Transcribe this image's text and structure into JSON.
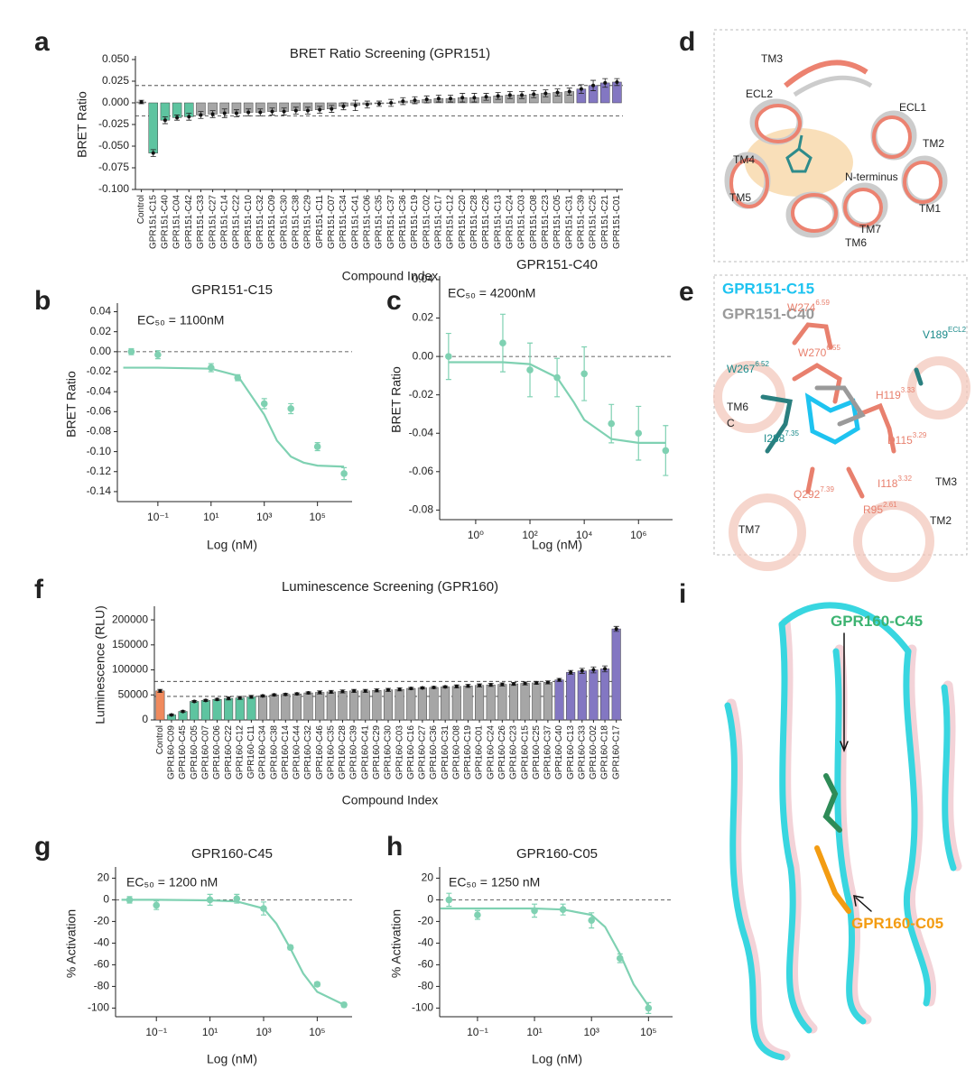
{
  "chart_data": [
    {
      "type": "bar",
      "panel": "a",
      "title": "BRET Ratio Screening (GPR151)",
      "xlabel": "Compound Index",
      "ylabel": "BRET Ratio",
      "categories": [
        "Control",
        "GPR151-C15",
        "GPR151-C40",
        "GPR151-C04",
        "GPR151-C42",
        "GPR151-C33",
        "GPR151-C27",
        "GPR151-C14",
        "GPR151-C22",
        "GPR151-C10",
        "GPR151-C32",
        "GPR151-C09",
        "GPR151-C30",
        "GPR151-C38",
        "GPR151-C29",
        "GPR151-C11",
        "GPR151-C07",
        "GPR151-C34",
        "GPR151-C41",
        "GPR151-C06",
        "GPR151-C35",
        "GPR151-C37",
        "GPR151-C36",
        "GPR151-C19",
        "GPR151-C02",
        "GPR151-C17",
        "GPR151-C12",
        "GPR151-C20",
        "GPR151-C28",
        "GPR151-C26",
        "GPR151-C13",
        "GPR151-C24",
        "GPR151-C03",
        "GPR151-C08",
        "GPR151-C23",
        "GPR151-C05",
        "GPR151-C31",
        "GPR151-C39",
        "GPR151-C25",
        "GPR151-C21",
        "GPR151-C01"
      ],
      "values": [
        0.001,
        -0.058,
        -0.02,
        -0.017,
        -0.016,
        -0.014,
        -0.013,
        -0.012,
        -0.012,
        -0.011,
        -0.011,
        -0.01,
        -0.01,
        -0.009,
        -0.009,
        -0.008,
        -0.007,
        -0.004,
        -0.003,
        -0.002,
        -0.001,
        0,
        0.002,
        0.003,
        0.004,
        0.005,
        0.005,
        0.006,
        0.006,
        0.007,
        0.008,
        0.009,
        0.009,
        0.01,
        0.011,
        0.012,
        0.013,
        0.016,
        0.02,
        0.023,
        0.024
      ],
      "errors": [
        0.002,
        0.004,
        0.004,
        0.003,
        0.004,
        0.004,
        0.004,
        0.005,
        0.004,
        0.004,
        0.004,
        0.004,
        0.004,
        0.004,
        0.004,
        0.004,
        0.004,
        0.004,
        0.006,
        0.004,
        0.003,
        0.004,
        0.004,
        0.004,
        0.004,
        0.004,
        0.004,
        0.005,
        0.005,
        0.004,
        0.004,
        0.004,
        0.004,
        0.004,
        0.004,
        0.004,
        0.004,
        0.005,
        0.006,
        0.005,
        0.004
      ],
      "colors": [
        "#d0d0d0",
        "#5ec4a0",
        "#5ec4a0",
        "#5ec4a0",
        "#5ec4a0",
        "#a6a6a6",
        "#a6a6a6",
        "#a6a6a6",
        "#a6a6a6",
        "#a6a6a6",
        "#a6a6a6",
        "#a6a6a6",
        "#a6a6a6",
        "#a6a6a6",
        "#a6a6a6",
        "#a6a6a6",
        "#a6a6a6",
        "#a6a6a6",
        "#a6a6a6",
        "#a6a6a6",
        "#a6a6a6",
        "#a6a6a6",
        "#a6a6a6",
        "#a6a6a6",
        "#a6a6a6",
        "#a6a6a6",
        "#a6a6a6",
        "#a6a6a6",
        "#a6a6a6",
        "#a6a6a6",
        "#a6a6a6",
        "#a6a6a6",
        "#a6a6a6",
        "#a6a6a6",
        "#a6a6a6",
        "#a6a6a6",
        "#a6a6a6",
        "#8377c2",
        "#8377c2",
        "#8377c2",
        "#8377c2"
      ],
      "ylim": [
        -0.1,
        0.05
      ],
      "yticks": [
        {
          "value": 0.05,
          "label": "0.050"
        },
        0.025,
        {
          "value": 0,
          "label": "0.000"
        },
        -0.025,
        {
          "value": -0.05,
          "label": "-0.050"
        },
        -0.075,
        {
          "value": -0.1,
          "label": "-0.100"
        }
      ],
      "reference_lines": [
        0.02,
        -0.015
      ]
    },
    {
      "type": "scatter",
      "panel": "b",
      "title": "GPR151-C15",
      "xlabel": "Log (nM)",
      "ylabel": "BRET Ratio",
      "annotation": "EC₅₀ = 1100nM",
      "xscale": "log",
      "color": "#7fd1b2",
      "x": [
        0.01,
        0.1,
        10,
        100,
        1000,
        10000,
        100000,
        1000000
      ],
      "values": [
        0,
        -0.003,
        -0.016,
        -0.026,
        -0.052,
        -0.057,
        -0.095,
        -0.122
      ],
      "errors": [
        0.003,
        0.004,
        0.004,
        0.003,
        0.005,
        0.005,
        0.004,
        0.006
      ],
      "fit": {
        "x": [
          0.005,
          0.1,
          10,
          100,
          1000,
          3000,
          10000,
          30000,
          100000,
          1000000
        ],
        "y": [
          -0.016,
          -0.016,
          -0.017,
          -0.024,
          -0.063,
          -0.089,
          -0.105,
          -0.111,
          -0.114,
          -0.115
        ]
      },
      "xlim": [
        0.003,
        2000000
      ],
      "xticks": [
        {
          "value": 0.1,
          "label": "10⁻¹"
        },
        {
          "value": 10,
          "label": "10¹"
        },
        {
          "value": 1000,
          "label": "10³"
        },
        {
          "value": 100000,
          "label": "10⁵"
        }
      ],
      "ylim": [
        -0.15,
        0.045
      ],
      "yticks": [
        0.04,
        0.02,
        {
          "value": 0,
          "label": "0.00"
        },
        -0.02,
        -0.04,
        -0.06,
        -0.08,
        {
          "value": -0.1,
          "label": "-0.10"
        },
        -0.12,
        -0.14
      ],
      "reference_lines": [
        0
      ]
    },
    {
      "type": "scatter",
      "panel": "c",
      "title": "GPR151-C40",
      "xlabel": "Log (nM)",
      "ylabel": "BRET Ratio",
      "annotation": "EC₅₀ = 4200nM",
      "xscale": "log",
      "color": "#7fd1b2",
      "x": [
        0.1,
        10,
        100,
        1000,
        10000,
        100000,
        1000000,
        10000000
      ],
      "values": [
        0,
        0.007,
        -0.007,
        -0.011,
        -0.009,
        -0.035,
        -0.04,
        -0.049
      ],
      "errors": [
        0.012,
        0.015,
        0.014,
        0.01,
        0.014,
        0.01,
        0.014,
        0.013
      ],
      "fit": {
        "x": [
          0.1,
          10,
          100,
          1000,
          4200,
          10000,
          100000,
          1000000,
          10000000
        ],
        "y": [
          -0.003,
          -0.003,
          -0.004,
          -0.011,
          -0.024,
          -0.033,
          -0.043,
          -0.045,
          -0.045
        ]
      },
      "xlim": [
        0.047,
        18000000
      ],
      "xticks": [
        {
          "value": 1,
          "label": "10⁰"
        },
        {
          "value": 100,
          "label": "10²"
        },
        {
          "value": 10000,
          "label": "10⁴"
        },
        {
          "value": 1000000,
          "label": "10⁶"
        }
      ],
      "ylim": [
        -0.085,
        0.04
      ],
      "yticks": [
        0.04,
        0.02,
        {
          "value": 0,
          "label": "0.00"
        },
        -0.02,
        -0.04,
        -0.06,
        -0.08
      ],
      "reference_lines": [
        0
      ]
    },
    {
      "type": "bar",
      "panel": "f",
      "title": "Luminescence Screening (GPR160)",
      "xlabel": "Compound Index",
      "ylabel": "Luminescence (RLU)",
      "categories": [
        "Control",
        "GPR160-C09",
        "GPR160-C45",
        "GPR160-C05",
        "GPR160-C07",
        "GPR160-C06",
        "GPR160-C22",
        "GPR160-C12",
        "GPR160-C11",
        "GPR160-C34",
        "GPR160-C38",
        "GPR160-C14",
        "GPR160-C44",
        "GPR160-C32",
        "GPR160-C46",
        "GPR160-C35",
        "GPR160-C28",
        "GPR160-C39",
        "GPR160-C41",
        "GPR160-C29",
        "GPR160-C30",
        "GPR160-C03",
        "GPR160-C16",
        "GPR160-C27",
        "GPR160-C36",
        "GPR160-C31",
        "GPR160-C08",
        "GPR160-C19",
        "GPR160-C01",
        "GPR160-C24",
        "GPR160-C26",
        "GPR160-C23",
        "GPR160-C15",
        "GPR160-C25",
        "GPR160-C37",
        "GPR160-C40",
        "GPR160-C13",
        "GPR160-C33",
        "GPR160-C02",
        "GPR160-C18",
        "GPR160-C17"
      ],
      "values": [
        58000,
        10000,
        17000,
        37000,
        39000,
        41000,
        43000,
        44000,
        46000,
        48000,
        50000,
        51000,
        52000,
        54000,
        55000,
        56000,
        57000,
        58000,
        58000,
        59000,
        60000,
        61000,
        63000,
        64000,
        65000,
        66000,
        67000,
        68000,
        69000,
        70000,
        71000,
        72000,
        73000,
        74000,
        75000,
        80000,
        95000,
        98000,
        100000,
        102000,
        182000
      ],
      "errors": [
        3000,
        1500,
        1500,
        2000,
        2000,
        2000,
        3000,
        3000,
        3000,
        2000,
        2000,
        2000,
        2000,
        2000,
        3000,
        3000,
        3000,
        3000,
        3000,
        3000,
        3000,
        3000,
        2000,
        2000,
        2000,
        2000,
        3000,
        3000,
        3000,
        3000,
        3000,
        3000,
        3000,
        3000,
        3000,
        3000,
        4000,
        5000,
        6000,
        6000,
        5000
      ],
      "colors": [
        "#f08a5d",
        "#5ec4a0",
        "#5ec4a0",
        "#5ec4a0",
        "#5ec4a0",
        "#5ec4a0",
        "#5ec4a0",
        "#5ec4a0",
        "#5ec4a0",
        "#a6a6a6",
        "#a6a6a6",
        "#a6a6a6",
        "#a6a6a6",
        "#a6a6a6",
        "#a6a6a6",
        "#a6a6a6",
        "#a6a6a6",
        "#a6a6a6",
        "#a6a6a6",
        "#a6a6a6",
        "#a6a6a6",
        "#a6a6a6",
        "#a6a6a6",
        "#a6a6a6",
        "#a6a6a6",
        "#a6a6a6",
        "#a6a6a6",
        "#a6a6a6",
        "#a6a6a6",
        "#a6a6a6",
        "#a6a6a6",
        "#a6a6a6",
        "#a6a6a6",
        "#a6a6a6",
        "#a6a6a6",
        "#8377c2",
        "#8377c2",
        "#8377c2",
        "#8377c2",
        "#8377c2",
        "#8377c2"
      ],
      "ylim": [
        0,
        220000
      ],
      "yticks": [
        0,
        50000,
        100000,
        150000,
        200000
      ],
      "reference_lines": [
        77000,
        47000
      ]
    },
    {
      "type": "scatter",
      "panel": "g",
      "title": "GPR160-C45",
      "xlabel": "Log (nM)",
      "ylabel": "% Activation",
      "annotation": "EC₅₀ = 1200 nM",
      "xscale": "log",
      "color": "#7fd1b2",
      "x": [
        0.01,
        0.1,
        10,
        100,
        1000,
        10000,
        100000,
        1000000
      ],
      "values": [
        0,
        -5,
        0,
        1,
        -8,
        -44,
        -78,
        -97
      ],
      "errors": [
        3,
        4,
        5,
        4,
        6,
        2,
        2,
        2
      ],
      "fit": {
        "x": [
          0.005,
          0.1,
          10,
          100,
          1000,
          3000,
          10000,
          30000,
          100000,
          1000000
        ],
        "y": [
          0,
          0,
          -0.5,
          -1.5,
          -8,
          -22,
          -45,
          -68,
          -85,
          -97
        ]
      },
      "xlim": [
        0.003,
        2000000
      ],
      "xticks": [
        {
          "value": 0.1,
          "label": "10⁻¹"
        },
        {
          "value": 10,
          "label": "10¹"
        },
        {
          "value": 1000,
          "label": "10³"
        },
        {
          "value": 100000,
          "label": "10⁵"
        }
      ],
      "ylim": [
        -108,
        27
      ],
      "yticks": [
        20,
        0,
        -20,
        -40,
        -60,
        -80,
        -100
      ],
      "reference_lines": [
        0
      ]
    },
    {
      "type": "scatter",
      "panel": "h",
      "title": "GPR160-C05",
      "xlabel": "Log (nM)",
      "ylabel": "% Activation",
      "annotation": "EC₅₀ = 1250 nM",
      "xscale": "log",
      "color": "#7fd1b2",
      "x": [
        0.01,
        0.1,
        10,
        100,
        1000,
        10000,
        100000
      ],
      "values": [
        0,
        -14,
        -10,
        -9,
        -19,
        -54,
        -100
      ],
      "errors": [
        6,
        4,
        6,
        5,
        7,
        4,
        5
      ],
      "fit": {
        "x": [
          0.005,
          0.1,
          10,
          100,
          1000,
          3000,
          10000,
          30000,
          100000
        ],
        "y": [
          -8,
          -8,
          -8,
          -9,
          -14,
          -25,
          -50,
          -78,
          -98
        ]
      },
      "xlim": [
        0.0047,
        700000
      ],
      "xticks": [
        {
          "value": 0.1,
          "label": "10⁻¹"
        },
        {
          "value": 10,
          "label": "10¹"
        },
        {
          "value": 1000,
          "label": "10³"
        },
        {
          "value": 100000,
          "label": "10⁵"
        }
      ],
      "ylim": [
        -108,
        27
      ],
      "yticks": [
        20,
        0,
        -20,
        -40,
        -60,
        -80,
        -100
      ],
      "reference_lines": [
        0
      ]
    }
  ],
  "structures": [
    {
      "panel": "d",
      "labels": [
        {
          "text": "TM3"
        },
        {
          "text": "ECL2"
        },
        {
          "text": "ECL1"
        },
        {
          "text": "TM2"
        },
        {
          "text": "TM4"
        },
        {
          "text": "N-terminus"
        },
        {
          "text": "TM5"
        },
        {
          "text": "TM1"
        },
        {
          "text": "TM7"
        },
        {
          "text": "TM6"
        }
      ]
    },
    {
      "panel": "e",
      "legend": [
        {
          "text": "GPR151-C15",
          "color": "#1ec3f0"
        },
        {
          "text": "GPR151-C40",
          "color": "#9a9a9a"
        }
      ],
      "labels": [
        {
          "text": "W274",
          "sup": "6.59",
          "color": "#e8806e"
        },
        {
          "text": "V189",
          "sup": "ECL2",
          "color": "#1a8a8a"
        },
        {
          "text": "W270",
          "sup": "6.55",
          "color": "#e8806e"
        },
        {
          "text": "W267",
          "sup": "6.52",
          "color": "#1a8a8a"
        },
        {
          "text": "H119",
          "sup": "3.33",
          "color": "#e8806e"
        },
        {
          "text": "TM6",
          "color": "#222222"
        },
        {
          "text": "C",
          "color": "#222222"
        },
        {
          "text": "I288",
          "sup": "7.35",
          "color": "#1a8a8a"
        },
        {
          "text": "D115",
          "sup": "3.29",
          "color": "#e8806e"
        },
        {
          "text": "I118",
          "sup": "3.32",
          "color": "#e8806e"
        },
        {
          "text": "Q292",
          "sup": "7.39",
          "color": "#e8806e"
        },
        {
          "text": "R95",
          "sup": "2.61",
          "color": "#e8806e"
        },
        {
          "text": "TM3",
          "color": "#222222"
        },
        {
          "text": "TM7",
          "color": "#222222"
        },
        {
          "text": "TM2",
          "color": "#222222"
        }
      ]
    },
    {
      "panel": "i",
      "labels": [
        {
          "text": "GPR160-C45",
          "color": "#3cb371"
        },
        {
          "text": "GPR160-C05",
          "color": "#f39c12"
        }
      ]
    }
  ]
}
